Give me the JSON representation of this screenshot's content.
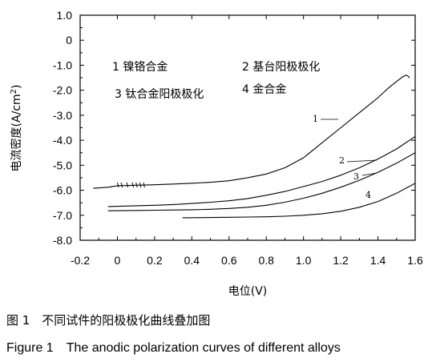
{
  "caption": {
    "chinese": "图 1　不同试件的阳极极化曲线叠加图",
    "english": "Figure 1　The anodic polarization curves of different alloys"
  },
  "chart_data": {
    "type": "line",
    "title": "",
    "xlabel": "电位(V)",
    "ylabel": "电流密度(A/cm²)",
    "ylabel_parts": {
      "main": "电流密度(A/cm",
      "sup": "2",
      "close": ")"
    },
    "xlim": [
      -0.2,
      1.6
    ],
    "ylim": [
      -8.0,
      1.0
    ],
    "x_ticks": [
      -0.2,
      0,
      0.2,
      0.4,
      0.6,
      0.8,
      1.0,
      1.2,
      1.4,
      1.6
    ],
    "x_tick_labels": [
      "-0.2",
      "0",
      "0.2",
      "0.4",
      "0.6",
      "0.8",
      "1.0",
      "1.2",
      "1.4",
      "1.6"
    ],
    "y_ticks": [
      1.0,
      0,
      -1.0,
      -2.0,
      -3.0,
      -4.0,
      -5.0,
      -6.0,
      -7.0,
      -8.0
    ],
    "y_tick_labels": [
      "1.0",
      "0",
      "-1.0",
      "-2.0",
      "-3.0",
      "-4.0",
      "-5.0",
      "-6.0",
      "-7.0",
      "-8.0"
    ],
    "grid": false,
    "legend_entries": [
      {
        "id": "1",
        "text": "1 镍铬合金"
      },
      {
        "id": "2",
        "text": "2 基台阳极极化"
      },
      {
        "id": "3",
        "text": "3 钛合金阳极极化"
      },
      {
        "id": "4",
        "text": "4 金合金"
      }
    ],
    "series": [
      {
        "name": "1",
        "x": [
          -0.13,
          -0.05,
          0.0,
          0.1,
          0.2,
          0.3,
          0.4,
          0.5,
          0.6,
          0.7,
          0.8,
          0.9,
          1.0,
          1.1,
          1.2,
          1.3,
          1.4,
          1.45,
          1.5,
          1.53,
          1.55,
          1.56,
          1.57
        ],
        "y": [
          -5.92,
          -5.88,
          -5.82,
          -5.8,
          -5.78,
          -5.75,
          -5.72,
          -5.68,
          -5.62,
          -5.5,
          -5.35,
          -5.1,
          -4.7,
          -4.1,
          -3.5,
          -2.9,
          -2.3,
          -1.95,
          -1.65,
          -1.48,
          -1.4,
          -1.42,
          -1.5
        ]
      },
      {
        "name": "2",
        "x": [
          -0.05,
          0.1,
          0.2,
          0.3,
          0.4,
          0.5,
          0.6,
          0.7,
          0.8,
          0.9,
          1.0,
          1.1,
          1.2,
          1.3,
          1.4,
          1.5,
          1.6
        ],
        "y": [
          -6.65,
          -6.62,
          -6.6,
          -6.57,
          -6.53,
          -6.48,
          -6.42,
          -6.33,
          -6.2,
          -6.05,
          -5.85,
          -5.65,
          -5.4,
          -5.1,
          -4.75,
          -4.35,
          -3.85
        ]
      },
      {
        "name": "3",
        "x": [
          -0.05,
          0.1,
          0.2,
          0.3,
          0.4,
          0.5,
          0.6,
          0.7,
          0.8,
          0.9,
          1.0,
          1.1,
          1.2,
          1.3,
          1.4,
          1.5,
          1.6
        ],
        "y": [
          -6.82,
          -6.81,
          -6.8,
          -6.79,
          -6.78,
          -6.76,
          -6.73,
          -6.68,
          -6.6,
          -6.48,
          -6.32,
          -6.12,
          -5.88,
          -5.6,
          -5.28,
          -4.92,
          -4.5
        ]
      },
      {
        "name": "4",
        "x": [
          0.35,
          0.5,
          0.6,
          0.7,
          0.8,
          0.9,
          1.0,
          1.1,
          1.2,
          1.3,
          1.4,
          1.5,
          1.6
        ],
        "y": [
          -7.1,
          -7.09,
          -7.08,
          -7.07,
          -7.06,
          -7.04,
          -7.0,
          -6.94,
          -6.84,
          -6.68,
          -6.45,
          -6.12,
          -5.72
        ]
      }
    ]
  }
}
